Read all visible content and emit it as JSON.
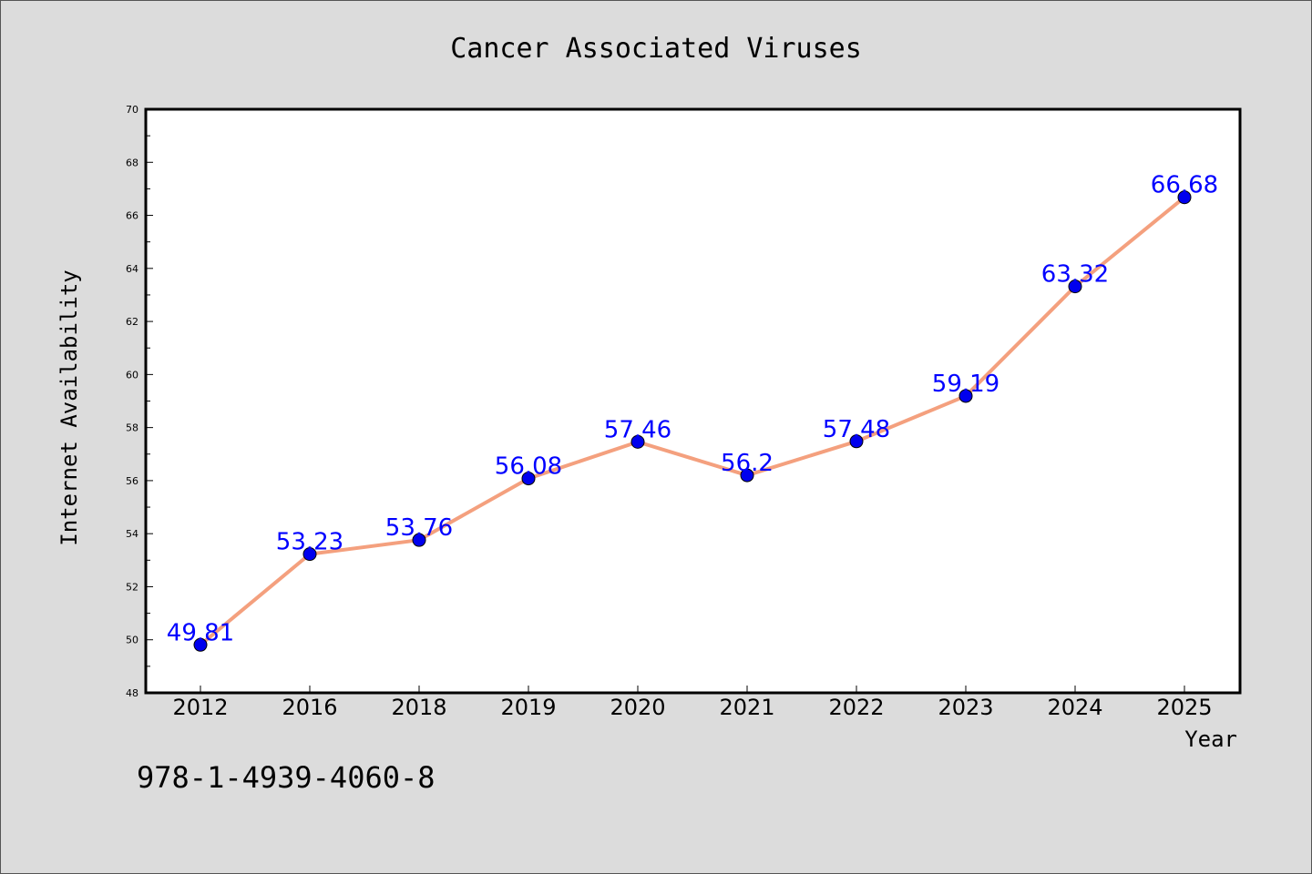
{
  "chart_data": {
    "type": "line",
    "title": "Cancer Associated Viruses",
    "xlabel": "Year",
    "ylabel": "Internet Availability",
    "categories": [
      "2012",
      "2016",
      "2018",
      "2019",
      "2020",
      "2021",
      "2022",
      "2023",
      "2024",
      "2025"
    ],
    "series": [
      {
        "values": [
          49.81,
          53.23,
          53.76,
          56.08,
          57.46,
          56.2,
          57.48,
          59.19,
          63.32,
          66.68
        ],
        "data_labels": [
          "49.81",
          "53.23",
          "53.76",
          "56.08",
          "57.46",
          "56.2",
          "57.48",
          "59.19",
          "63.32",
          "66.68"
        ]
      }
    ],
    "ylim": [
      48,
      70
    ],
    "yticks": [
      "48",
      "50",
      "52",
      "54",
      "56",
      "58",
      "60",
      "62",
      "64",
      "66",
      "68",
      "70"
    ],
    "grid": false,
    "colors": {
      "line": "#f4a07e",
      "marker": "#0000ee",
      "data_label": "#0000ff"
    }
  },
  "footer": {
    "text": "978-1-4939-4060-8"
  }
}
